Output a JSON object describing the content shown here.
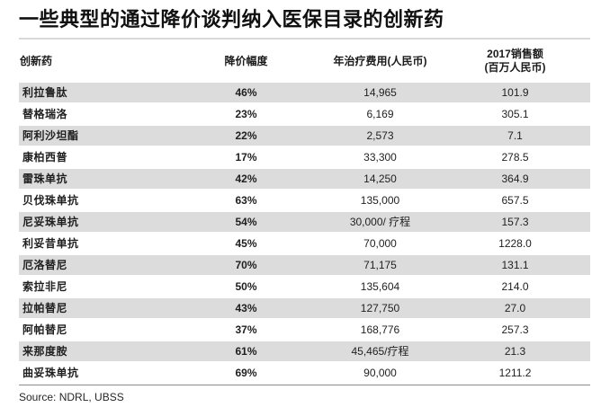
{
  "title": "一些典型的通过降价谈判纳入医保目录的创新药",
  "source": "Source: NDRL, UBSS",
  "colors": {
    "row_stripe": "#dcdcdc",
    "title_rule": "#d9d9d9",
    "footer_rule": "#8c8c8c"
  },
  "table": {
    "columns": [
      {
        "label": "创新药"
      },
      {
        "label": "降价幅度"
      },
      {
        "label": "年治疗费用(人民币)"
      },
      {
        "label": "2017销售额",
        "label2": "(百万人民币)"
      }
    ],
    "rows": [
      {
        "drug": "利拉鲁肽",
        "discount": "46%",
        "annual_cost": "14,965",
        "sales_2017": "101.9"
      },
      {
        "drug": "替格瑞洛",
        "discount": "23%",
        "annual_cost": "6,169",
        "sales_2017": "305.1"
      },
      {
        "drug": "阿利沙坦酯",
        "discount": "22%",
        "annual_cost": "2,573",
        "sales_2017": "7.1"
      },
      {
        "drug": "康柏西普",
        "discount": "17%",
        "annual_cost": "33,300",
        "sales_2017": "278.5"
      },
      {
        "drug": "雷珠单抗",
        "discount": "42%",
        "annual_cost": "14,250",
        "sales_2017": "364.9"
      },
      {
        "drug": "贝伐珠单抗",
        "discount": "63%",
        "annual_cost": "135,000",
        "sales_2017": "657.5"
      },
      {
        "drug": "尼妥珠单抗",
        "discount": "54%",
        "annual_cost": "30,000/ 疗程",
        "sales_2017": "157.3"
      },
      {
        "drug": "利妥昔单抗",
        "discount": "45%",
        "annual_cost": "70,000",
        "sales_2017": "1228.0"
      },
      {
        "drug": "厄洛替尼",
        "discount": "70%",
        "annual_cost": "71,175",
        "sales_2017": "131.1"
      },
      {
        "drug": "索拉非尼",
        "discount": "50%",
        "annual_cost": "135,604",
        "sales_2017": "214.0"
      },
      {
        "drug": "拉帕替尼",
        "discount": "43%",
        "annual_cost": "127,750",
        "sales_2017": "27.0"
      },
      {
        "drug": "阿帕替尼",
        "discount": "37%",
        "annual_cost": "168,776",
        "sales_2017": "257.3"
      },
      {
        "drug": "来那度胺",
        "discount": "61%",
        "annual_cost": "45,465/疗程",
        "sales_2017": "21.3"
      },
      {
        "drug": "曲妥珠单抗",
        "discount": "69%",
        "annual_cost": "90,000",
        "sales_2017": "1211.2"
      }
    ]
  }
}
